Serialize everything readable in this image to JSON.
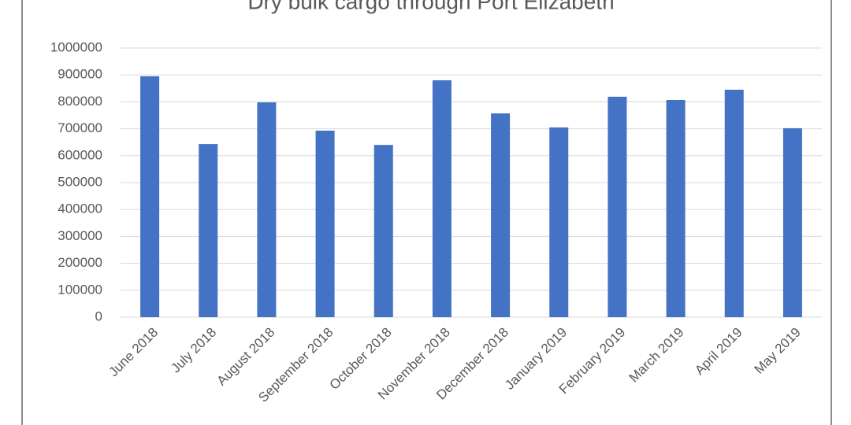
{
  "chart_data": {
    "type": "bar",
    "title": "Dry bulk cargo through Port Elizabeth",
    "categories": [
      "June 2018",
      "July 2018",
      "August 2018",
      "September 2018",
      "October 2018",
      "November 2018",
      "December 2018",
      "January 2019",
      "February 2019",
      "March 2019",
      "April 2019",
      "May 2019"
    ],
    "values": [
      895000,
      643000,
      798000,
      693000,
      640000,
      880000,
      757000,
      705000,
      819000,
      807000,
      845000,
      702000
    ],
    "color": "#4472c4",
    "ylim": [
      0,
      1000000
    ],
    "yticks": [
      0,
      100000,
      200000,
      300000,
      400000,
      500000,
      600000,
      700000,
      800000,
      900000,
      1000000
    ],
    "grid": true
  }
}
